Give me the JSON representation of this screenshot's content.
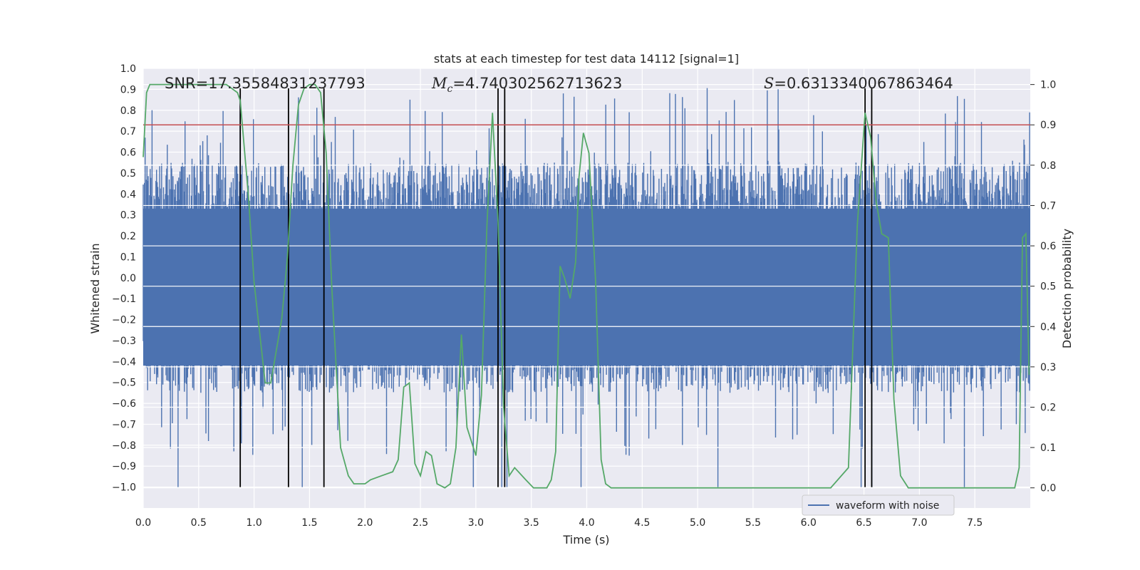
{
  "chart_data": {
    "type": "line",
    "title": "stats at each timestep for test data 14112 [signal=1]",
    "xlabel": "Time (s)",
    "ylabel": "Whitened strain",
    "ylabel_right": "Detection probability",
    "xlim": [
      0.0,
      8.0
    ],
    "ylim": [
      -1.1,
      1.0
    ],
    "ylim_right": [
      -0.05,
      1.04
    ],
    "x_ticks": [
      "0.0",
      "0.5",
      "1.0",
      "1.5",
      "2.0",
      "2.5",
      "3.0",
      "3.5",
      "4.0",
      "4.5",
      "5.0",
      "5.5",
      "6.0",
      "6.5",
      "7.0",
      "7.5"
    ],
    "x_tick_values": [
      0.0,
      0.5,
      1.0,
      1.5,
      2.0,
      2.5,
      3.0,
      3.5,
      4.0,
      4.5,
      5.0,
      5.5,
      6.0,
      6.5,
      7.0,
      7.5
    ],
    "y_ticks": [
      "1.0",
      "0.9",
      "0.8",
      "0.7",
      "0.6",
      "0.5",
      "0.4",
      "0.3",
      "0.2",
      "0.1",
      "0.0",
      "−0.1",
      "−0.2",
      "−0.3",
      "−0.4",
      "−0.5",
      "−0.6",
      "−0.7",
      "−0.8",
      "−0.9",
      "−1.0"
    ],
    "y_tick_values": [
      1.0,
      0.9,
      0.8,
      0.7,
      0.6,
      0.5,
      0.4,
      0.3,
      0.2,
      0.1,
      0.0,
      -0.1,
      -0.2,
      -0.3,
      -0.4,
      -0.5,
      -0.6,
      -0.7,
      -0.8,
      -0.9,
      -1.0
    ],
    "y_ticks_right": [
      "1.0",
      "0.9",
      "0.8",
      "0.7",
      "0.6",
      "0.5",
      "0.4",
      "0.3",
      "0.2",
      "0.1",
      "0.0"
    ],
    "y_tick_values_right": [
      1.0,
      0.9,
      0.8,
      0.7,
      0.6,
      0.5,
      0.4,
      0.3,
      0.2,
      0.1,
      0.0
    ],
    "annotations": {
      "snr": "SNR=17.35584831237793",
      "mc_symbol": "M",
      "mc_sub": "c",
      "mc_value": "=4.740302562713623",
      "s_symbol": "S",
      "s_value": "=0.6313340067863464"
    },
    "threshold": 0.9,
    "vlines": [
      0.875,
      1.31,
      1.63,
      3.2,
      3.26,
      6.51,
      6.57
    ],
    "legend": {
      "label": "waveform with noise",
      "placement": "lower-right"
    },
    "series": [
      {
        "name": "waveform with noise",
        "axis": "left",
        "style": "noise-band",
        "envelope": {
          "upper_typical": 0.55,
          "lower_typical": -0.55,
          "upper_max": 0.92,
          "lower_min": -1.0
        }
      },
      {
        "name": "Detection probability",
        "axis": "right",
        "x": [
          0.0,
          0.03,
          0.06,
          0.1,
          0.2,
          0.35,
          0.5,
          0.65,
          0.75,
          0.8,
          0.85,
          0.875,
          0.95,
          1.0,
          1.1,
          1.15,
          1.25,
          1.3,
          1.35,
          1.4,
          1.45,
          1.5,
          1.55,
          1.6,
          1.65,
          1.7,
          1.78,
          1.85,
          1.9,
          2.0,
          2.05,
          2.15,
          2.25,
          2.3,
          2.35,
          2.4,
          2.45,
          2.5,
          2.55,
          2.6,
          2.65,
          2.72,
          2.77,
          2.82,
          2.87,
          2.92,
          3.0,
          3.05,
          3.1,
          3.15,
          3.2,
          3.25,
          3.3,
          3.35,
          3.45,
          3.52,
          3.58,
          3.64,
          3.68,
          3.72,
          3.76,
          3.8,
          3.85,
          3.9,
          3.93,
          3.97,
          4.02,
          4.08,
          4.13,
          4.17,
          4.22,
          4.27,
          4.3,
          4.35,
          4.45,
          4.6,
          5.0,
          5.25,
          5.5,
          5.75,
          6.0,
          6.2,
          6.36,
          6.44,
          6.51,
          6.56,
          6.61,
          6.66,
          6.72,
          6.77,
          6.83,
          6.9,
          6.97,
          7.2,
          7.4,
          7.6,
          7.82,
          7.86,
          7.9,
          7.93,
          7.96,
          7.99
        ],
        "values": [
          0.82,
          0.98,
          1.0,
          1.0,
          1.0,
          1.0,
          1.0,
          1.0,
          1.0,
          0.99,
          0.98,
          0.96,
          0.72,
          0.51,
          0.26,
          0.26,
          0.42,
          0.57,
          0.8,
          0.95,
          0.99,
          1.0,
          1.0,
          0.98,
          0.83,
          0.5,
          0.1,
          0.03,
          0.01,
          0.01,
          0.02,
          0.03,
          0.04,
          0.07,
          0.25,
          0.26,
          0.06,
          0.03,
          0.09,
          0.08,
          0.01,
          0.0,
          0.01,
          0.1,
          0.38,
          0.15,
          0.08,
          0.23,
          0.65,
          0.93,
          0.66,
          0.2,
          0.03,
          0.05,
          0.02,
          0.0,
          0.0,
          0.0,
          0.02,
          0.09,
          0.55,
          0.52,
          0.47,
          0.56,
          0.77,
          0.88,
          0.83,
          0.51,
          0.07,
          0.01,
          0.0,
          0.0,
          0.0,
          0.0,
          0.0,
          0.0,
          0.0,
          0.0,
          0.0,
          0.0,
          0.0,
          0.0,
          0.05,
          0.65,
          0.93,
          0.87,
          0.71,
          0.63,
          0.62,
          0.22,
          0.03,
          0.0,
          0.0,
          0.0,
          0.0,
          0.0,
          0.0,
          0.0,
          0.05,
          0.62,
          0.63,
          0.28
        ]
      }
    ]
  }
}
